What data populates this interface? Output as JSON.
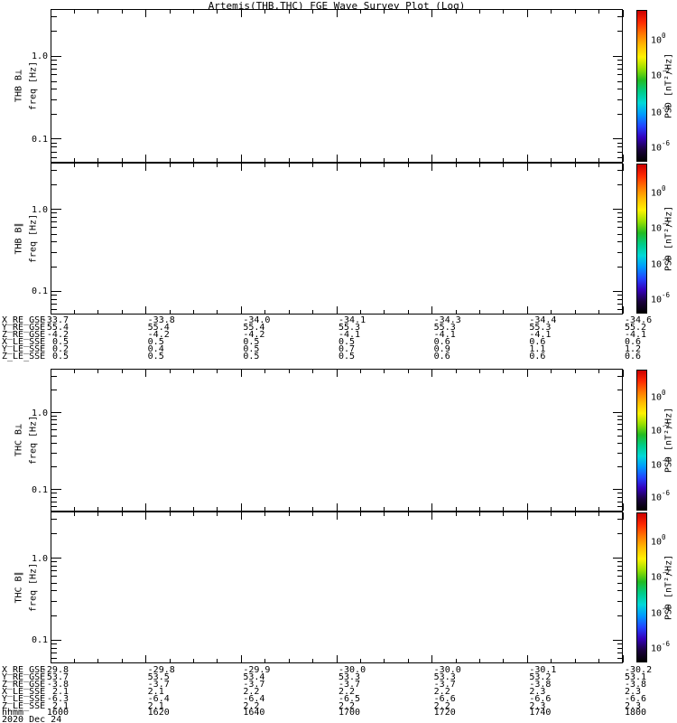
{
  "title": "Artemis(THB,THC) FGE Wave Survey Plot (Log)",
  "figure": {
    "panels": [
      {
        "id": "thb-bperp",
        "ylabel": "THB B⊥",
        "ylabel2": "freq [Hz]"
      },
      {
        "id": "thb-bpar",
        "ylabel": "THB B∥",
        "ylabel2": "freq [Hz]"
      },
      {
        "id": "thc-bperp",
        "ylabel": "THC B⊥",
        "ylabel2": "freq [Hz]"
      },
      {
        "id": "thc-bpar",
        "ylabel": "THC B∥",
        "ylabel2": "freq [Hz]"
      }
    ],
    "y_tick_labels": [
      "1.0",
      "0.1"
    ],
    "colorbar": {
      "label": "PSD [nT²/Hz]",
      "tick_base": "10",
      "tick_exponents": [
        "0",
        "-2",
        "-4",
        "-6"
      ],
      "gradient": [
        "#cc0000",
        "#ff2a00",
        "#ff7700",
        "#ffbb00",
        "#fff200",
        "#99e000",
        "#22bb22",
        "#00cc88",
        "#00d8d8",
        "#0099ff",
        "#2244ff",
        "#3300bb",
        "#1a0040",
        "#000000"
      ]
    }
  },
  "ephemeris": {
    "blocks": [
      {
        "rows": [
          {
            "label": "X_RE_GSE",
            "values": [
              "-33.7",
              "-33.8",
              "-34.0",
              "-34.1",
              "-34.3",
              "-34.4",
              "-34.6"
            ]
          },
          {
            "label": "Y_RE_GSE",
            "values": [
              "55.4",
              "55.4",
              "55.4",
              "55.3",
              "55.3",
              "55.3",
              "55.2"
            ]
          },
          {
            "label": "Z_RE_GSE",
            "values": [
              "-4.2",
              "-4.2",
              "-4.2",
              "-4.1",
              "-4.1",
              "-4.1",
              "-4.1"
            ]
          },
          {
            "label": "X_LE_SSE",
            "values": [
              "0.5",
              "0.5",
              "0.5",
              "0.5",
              "0.6",
              "0.6",
              "0.6"
            ]
          },
          {
            "label": "Y_LE_SSE",
            "values": [
              "0.2",
              "0.4",
              "0.5",
              "0.7",
              "0.9",
              "1.1",
              "1.2"
            ]
          },
          {
            "label": "Z_LE_SSE",
            "values": [
              "0.5",
              "0.5",
              "0.5",
              "0.5",
              "0.6",
              "0.6",
              "0.6"
            ]
          }
        ]
      },
      {
        "rows": [
          {
            "label": "X_RE_GSE",
            "values": [
              "-29.8",
              "-29.8",
              "-29.9",
              "-30.0",
              "-30.0",
              "-30.1",
              "-30.2"
            ]
          },
          {
            "label": "Y_RE_GSE",
            "values": [
              "53.7",
              "53.5",
              "53.4",
              "53.3",
              "53.3",
              "53.2",
              "53.1"
            ]
          },
          {
            "label": "Z_RE_GSE",
            "values": [
              "-3.8",
              "-3.7",
              "-3.7",
              "-3.7",
              "-3.7",
              "-3.8",
              "-3.8"
            ]
          },
          {
            "label": "X_LE_SSE",
            "values": [
              "2.1",
              "2.1",
              "2.2",
              "2.2",
              "2.2",
              "2.3",
              "2.3"
            ]
          },
          {
            "label": "Y_LE_SSE",
            "values": [
              "-6.3",
              "-6.4",
              "-6.4",
              "-6.5",
              "-6.6",
              "-6.6",
              "-6.6"
            ]
          },
          {
            "label": "Z_LE_SSE",
            "values": [
              "2.1",
              "2.1",
              "2.2",
              "2.2",
              "2.2",
              "2.3",
              "2.3"
            ]
          }
        ]
      }
    ],
    "time_row": {
      "label": "hhmm",
      "values": [
        "1600",
        "1620",
        "1640",
        "1700",
        "1720",
        "1740",
        "1800"
      ]
    },
    "date_label": "2020 Dec 24"
  },
  "chart_data": {
    "type": "heatmap",
    "title": "Artemis(THB,THC) FGE Wave Survey Plot (Log)",
    "panels": [
      {
        "ylabel": "THB B⊥ freq [Hz]"
      },
      {
        "ylabel": "THB B∥ freq [Hz]"
      },
      {
        "ylabel": "THC B⊥ freq [Hz]"
      },
      {
        "ylabel": "THC B∥ freq [Hz]"
      }
    ],
    "x_axis": {
      "label": "hhmm",
      "date": "2020 Dec 24",
      "tick_labels": [
        "1600",
        "1620",
        "1640",
        "1700",
        "1720",
        "1740",
        "1800"
      ],
      "minor_tick_interval_min": 5
    },
    "y_axis": {
      "label": "freq [Hz]",
      "scale": "log",
      "tick_labels": [
        "1.0",
        "0.1"
      ],
      "approx_range": [
        0.05,
        3.8
      ]
    },
    "colorbar": {
      "label": "PSD [nT²/Hz]",
      "scale": "log",
      "tick_labels": [
        "10^0",
        "10^-2",
        "10^-4",
        "10^-6"
      ]
    },
    "series": [],
    "note": "All four spectrogram panels are blank — no PSD spectral data is rendered in the plot areas",
    "ephemeris_tables": [
      {
        "columns": [
          "1600",
          "1620",
          "1640",
          "1700",
          "1720",
          "1740",
          "1800"
        ],
        "rows": [
          {
            "label": "X_RE_GSE",
            "values": [
              -33.7,
              -33.8,
              -34.0,
              -34.1,
              -34.3,
              -34.4,
              -34.6
            ]
          },
          {
            "label": "Y_RE_GSE",
            "values": [
              55.4,
              55.4,
              55.4,
              55.3,
              55.3,
              55.3,
              55.2
            ]
          },
          {
            "label": "Z_RE_GSE",
            "values": [
              -4.2,
              -4.2,
              -4.2,
              -4.1,
              -4.1,
              -4.1,
              -4.1
            ]
          },
          {
            "label": "X_LE_SSE",
            "values": [
              0.5,
              0.5,
              0.5,
              0.5,
              0.6,
              0.6,
              0.6
            ]
          },
          {
            "label": "Y_LE_SSE",
            "values": [
              0.2,
              0.4,
              0.5,
              0.7,
              0.9,
              1.1,
              1.2
            ]
          },
          {
            "label": "Z_LE_SSE",
            "values": [
              0.5,
              0.5,
              0.5,
              0.5,
              0.6,
              0.6,
              0.6
            ]
          }
        ]
      },
      {
        "columns": [
          "1600",
          "1620",
          "1640",
          "1700",
          "1720",
          "1740",
          "1800"
        ],
        "rows": [
          {
            "label": "X_RE_GSE",
            "values": [
              -29.8,
              -29.8,
              -29.9,
              -30.0,
              -30.0,
              -30.1,
              -30.2
            ]
          },
          {
            "label": "Y_RE_GSE",
            "values": [
              53.7,
              53.5,
              53.4,
              53.3,
              53.3,
              53.2,
              53.1
            ]
          },
          {
            "label": "Z_RE_GSE",
            "values": [
              -3.8,
              -3.7,
              -3.7,
              -3.7,
              -3.7,
              -3.8,
              -3.8
            ]
          },
          {
            "label": "X_LE_SSE",
            "values": [
              2.1,
              2.1,
              2.2,
              2.2,
              2.2,
              2.3,
              2.3
            ]
          },
          {
            "label": "Y_LE_SSE",
            "values": [
              -6.3,
              -6.4,
              -6.4,
              -6.5,
              -6.6,
              -6.6,
              -6.6
            ]
          },
          {
            "label": "Z_LE_SSE",
            "values": [
              2.1,
              2.1,
              2.2,
              2.2,
              2.2,
              2.3,
              2.3
            ]
          }
        ]
      }
    ]
  }
}
